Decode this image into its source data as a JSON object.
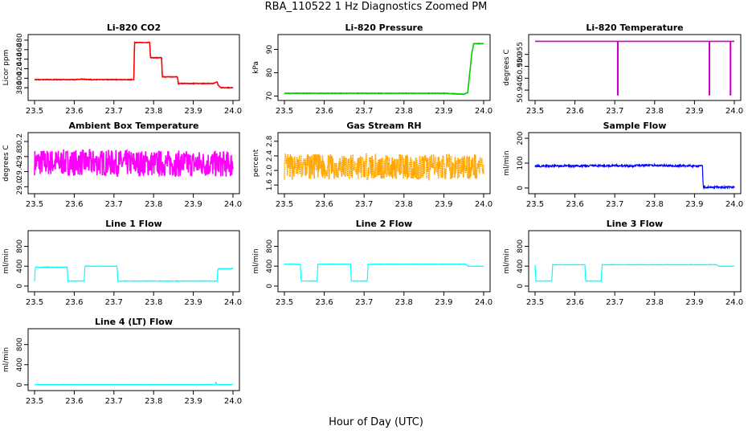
{
  "page": {
    "title": "RBA_110522  1 Hz Diagnostics Zoomed PM",
    "xlabel": "Hour of Day (UTC)"
  },
  "chart_data": [
    {
      "id": "p1",
      "type": "line",
      "title": "Li-820 CO2",
      "ylabel": "Licor ppm",
      "color": "#ff0000",
      "xlim": [
        23.5,
        24.0
      ],
      "xticks": [
        "23.5",
        "23.6",
        "23.7",
        "23.8",
        "23.9",
        "24.0"
      ],
      "ylim": [
        360,
        485
      ],
      "yticks": [
        380,
        400,
        420,
        440,
        460,
        480
      ],
      "ytick_labels": [
        "380",
        "400",
        "420",
        "440",
        "460",
        "480"
      ],
      "noise": 0.6,
      "series": [
        {
          "x": [
            23.5,
            23.6,
            23.62,
            23.64,
            23.75,
            23.752,
            23.79,
            23.792,
            23.82,
            23.822,
            23.86,
            23.862,
            23.95,
            23.96,
            23.962,
            23.97,
            24.0
          ],
          "y": [
            397,
            397,
            398,
            397,
            397,
            475,
            475,
            443,
            443,
            403,
            403,
            389,
            389,
            392,
            386,
            380,
            380
          ]
        }
      ]
    },
    {
      "id": "p2",
      "type": "line",
      "title": "Li-820 Pressure",
      "ylabel": "kPa",
      "color": "#00cc00",
      "xlim": [
        23.5,
        24.0
      ],
      "xticks": [
        "23.5",
        "23.6",
        "23.7",
        "23.8",
        "23.9",
        "24.0"
      ],
      "ylim": [
        69.5,
        95
      ],
      "yticks": [
        70,
        80,
        90
      ],
      "ytick_labels": [
        "70",
        "80",
        "90"
      ],
      "noise": 0.1,
      "series": [
        {
          "x": [
            23.5,
            23.9,
            23.95,
            23.96,
            23.97,
            23.975,
            24.0
          ],
          "y": [
            71.2,
            71.2,
            70.8,
            71.5,
            88,
            92.5,
            92.5
          ]
        }
      ]
    },
    {
      "id": "p3",
      "type": "line",
      "title": "Li-820 Temperature",
      "ylabel": "degrees C",
      "color": "#cc00cc",
      "xlim": [
        23.5,
        24.0
      ],
      "xticks": [
        "23.5",
        "23.6",
        "23.7",
        "23.8",
        "23.9",
        "24.0"
      ],
      "ylim": [
        50.937,
        50.962
      ],
      "yticks": [
        50.94,
        50.945,
        50.95,
        50.955
      ],
      "ytick_labels": [
        "50.940",
        "",
        "50.950",
        "50.955"
      ],
      "noise": 0,
      "series": [
        {
          "x": [
            23.5,
            23.707,
            23.707,
            23.708,
            23.708,
            23.937,
            23.937,
            23.938,
            23.938,
            23.99,
            23.99,
            23.991,
            23.991,
            24.0
          ],
          "y": [
            50.9605,
            50.9605,
            50.938,
            50.938,
            50.9605,
            50.9605,
            50.938,
            50.938,
            50.9605,
            50.9605,
            50.938,
            50.938,
            50.9605,
            50.9605
          ]
        }
      ]
    },
    {
      "id": "p4",
      "type": "line",
      "title": "Ambient Box Temperature",
      "ylabel": "degrees C",
      "color": "#ff00ff",
      "xlim": [
        23.5,
        24.0
      ],
      "xticks": [
        "23.5",
        "23.6",
        "23.7",
        "23.8",
        "23.9",
        "24.0"
      ],
      "ylim": [
        28.9,
        30.35
      ],
      "yticks": [
        29.0,
        29.4,
        29.8,
        30.2
      ],
      "ytick_labels": [
        "29.0",
        "29.4",
        "29.8",
        "30.2"
      ],
      "noise": 0.35,
      "seed": 7,
      "series": [
        {
          "x": [
            23.5,
            24.0
          ],
          "y": [
            29.65,
            29.6
          ]
        }
      ]
    },
    {
      "id": "p5",
      "type": "line",
      "title": "Gas Stream RH",
      "ylabel": "percent",
      "color": "#ffa500",
      "xlim": [
        23.5,
        24.0
      ],
      "xticks": [
        "23.5",
        "23.6",
        "23.7",
        "23.8",
        "23.9",
        "24.0"
      ],
      "ylim": [
        1.45,
        2.95
      ],
      "yticks": [
        1.6,
        2.0,
        2.4,
        2.8
      ],
      "ytick_labels": [
        "1.6",
        "2.0",
        "2.4",
        "2.8"
      ],
      "noise": 0.35,
      "seed": 13,
      "dotted": true,
      "series": [
        {
          "x": [
            23.5,
            24.0
          ],
          "y": [
            2.1,
            2.1
          ]
        }
      ]
    },
    {
      "id": "p6",
      "type": "line",
      "title": "Sample Flow",
      "ylabel": "ml/min",
      "color": "#0000ff",
      "xlim": [
        23.5,
        24.0
      ],
      "xticks": [
        "23.5",
        "23.6",
        "23.7",
        "23.8",
        "23.9",
        "24.0"
      ],
      "ylim": [
        -10,
        210
      ],
      "yticks": [
        0,
        100,
        200
      ],
      "ytick_labels": [
        "0",
        "100",
        "200"
      ],
      "noise": 4,
      "seed": 21,
      "series": [
        {
          "x": [
            23.5,
            23.7,
            23.75,
            23.752,
            23.92,
            23.922,
            24.0
          ],
          "y": [
            88,
            90,
            88,
            92,
            88,
            3,
            3
          ]
        }
      ]
    },
    {
      "id": "p7",
      "type": "line",
      "title": "Line 1 Flow",
      "ylabel": "ml/min",
      "color": "#00ffff",
      "xlim": [
        23.5,
        24.0
      ],
      "xticks": [
        "23.5",
        "23.6",
        "23.7",
        "23.8",
        "23.9",
        "24.0"
      ],
      "ylim": [
        -50,
        1050
      ],
      "yticks": [
        0,
        400,
        800
      ],
      "ytick_labels": [
        "0",
        "400",
        "800"
      ],
      "noise": 5,
      "seed": 3,
      "series": [
        {
          "x": [
            23.5,
            23.502,
            23.582,
            23.584,
            23.625,
            23.627,
            23.708,
            23.71,
            23.96,
            23.962,
            24.0
          ],
          "y": [
            100,
            380,
            380,
            100,
            100,
            400,
            400,
            100,
            100,
            350,
            350
          ]
        }
      ]
    },
    {
      "id": "p8",
      "type": "line",
      "title": "Line 2 Flow",
      "ylabel": "ml/min",
      "color": "#00ffff",
      "xlim": [
        23.5,
        24.0
      ],
      "xticks": [
        "23.5",
        "23.6",
        "23.7",
        "23.8",
        "23.9",
        "24.0"
      ],
      "ylim": [
        -50,
        1050
      ],
      "yticks": [
        0,
        400,
        800
      ],
      "ytick_labels": [
        "0",
        "400",
        "800"
      ],
      "noise": 4,
      "seed": 5,
      "series": [
        {
          "x": [
            23.5,
            23.54,
            23.542,
            23.582,
            23.584,
            23.666,
            23.668,
            23.708,
            23.71,
            23.955,
            23.96,
            24.0
          ],
          "y": [
            440,
            440,
            100,
            100,
            440,
            440,
            100,
            100,
            440,
            440,
            400,
            400
          ]
        }
      ]
    },
    {
      "id": "p9",
      "type": "line",
      "title": "Line 3 Flow",
      "ylabel": "ml/min",
      "color": "#00ffff",
      "xlim": [
        23.5,
        24.0
      ],
      "xticks": [
        "23.5",
        "23.6",
        "23.7",
        "23.8",
        "23.9",
        "24.0"
      ],
      "ylim": [
        -50,
        1050
      ],
      "yticks": [
        0,
        400,
        800
      ],
      "ytick_labels": [
        "0",
        "400",
        "800"
      ],
      "noise": 4,
      "seed": 9,
      "series": [
        {
          "x": [
            23.5,
            23.502,
            23.542,
            23.544,
            23.625,
            23.627,
            23.666,
            23.668,
            23.955,
            23.96,
            24.0
          ],
          "y": [
            430,
            100,
            100,
            430,
            430,
            100,
            100,
            430,
            430,
            400,
            400
          ]
        }
      ]
    },
    {
      "id": "p10",
      "type": "line",
      "title": "Line 4 (LT) Flow",
      "ylabel": "ml/min",
      "color": "#00ffff",
      "xlim": [
        23.5,
        24.0
      ],
      "xticks": [
        "23.5",
        "23.6",
        "23.7",
        "23.8",
        "23.9",
        "24.0"
      ],
      "ylim": [
        -50,
        1050
      ],
      "yticks": [
        0,
        400,
        800
      ],
      "ytick_labels": [
        "0",
        "400",
        "800"
      ],
      "noise": 2,
      "seed": 11,
      "series": [
        {
          "x": [
            23.5,
            23.955,
            23.957,
            23.959,
            23.961,
            24.0
          ],
          "y": [
            5,
            5,
            60,
            10,
            5,
            5
          ]
        }
      ]
    }
  ]
}
